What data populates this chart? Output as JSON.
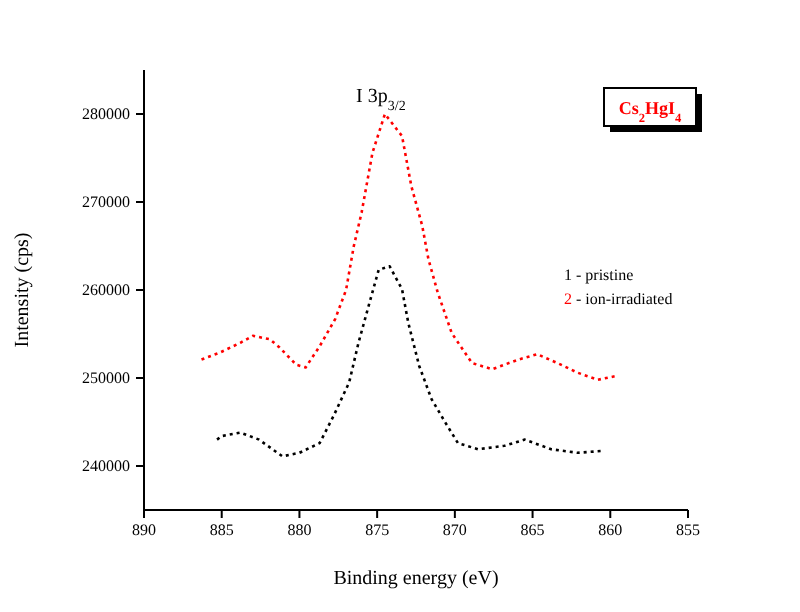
{
  "chart_data": {
    "type": "line",
    "xlabel": "Binding energy (eV)",
    "ylabel": "Intensity (cps)",
    "xlim": [
      890,
      855
    ],
    "xticks": [
      890,
      885,
      880,
      875,
      870,
      865,
      860,
      855
    ],
    "ylim": [
      235000,
      285000
    ],
    "yticks": [
      240000,
      250000,
      260000,
      270000,
      280000
    ],
    "grid": false,
    "legend": "right",
    "line_style": "dotted",
    "marker": "none",
    "series": [
      {
        "name": "1 - pristine",
        "color": "#000000",
        "x": [
          885.3,
          885.0,
          883.8,
          882.6,
          881.1,
          880.0,
          878.7,
          877.8,
          876.8,
          876.2,
          875.5,
          874.9,
          874.2,
          873.4,
          873.0,
          872.3,
          871.5,
          870.6,
          869.8,
          868.5,
          866.8,
          865.5,
          863.8,
          862.1,
          860.6
        ],
        "values": [
          243000,
          243400,
          243800,
          243000,
          241100,
          241500,
          242600,
          245700,
          249500,
          254000,
          258500,
          262300,
          262700,
          260100,
          256300,
          251400,
          247600,
          244900,
          242600,
          241900,
          242300,
          243000,
          241900,
          241500,
          241700
        ]
      },
      {
        "name": "2 - ion-irradiated",
        "color": "#ff0000",
        "x": [
          886.3,
          885.1,
          883.8,
          883.0,
          881.9,
          881.3,
          880.2,
          879.6,
          878.7,
          877.7,
          877.0,
          876.5,
          876.0,
          875.3,
          874.5,
          873.4,
          872.8,
          872.1,
          871.7,
          871.1,
          870.2,
          868.9,
          867.6,
          865.9,
          864.7,
          863.4,
          862.1,
          860.8,
          859.7
        ],
        "values": [
          252100,
          252900,
          254000,
          254800,
          254400,
          253500,
          251500,
          251200,
          253600,
          256700,
          260000,
          265000,
          268800,
          275600,
          280000,
          277500,
          271800,
          267300,
          263500,
          259700,
          255100,
          251700,
          251000,
          252100,
          252700,
          251700,
          250600,
          249800,
          250200
        ]
      }
    ],
    "annotations": [
      {
        "text": "I 3p$_{3/2}$",
        "x": 874.5,
        "y": 280000
      },
      "Cs$_{2}$HgI$_{4}$"
    ]
  }
}
